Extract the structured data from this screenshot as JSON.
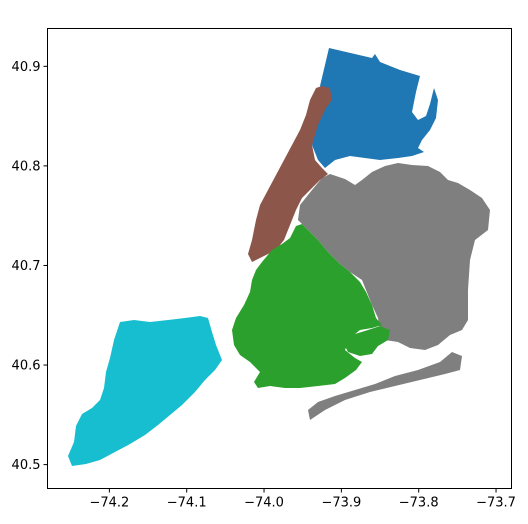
{
  "chart_data": {
    "type": "map",
    "xlim": [
      -74.28,
      -73.68
    ],
    "ylim": [
      40.476,
      40.938
    ],
    "x_ticks": [
      {
        "value": -74.2,
        "label": "−74.2"
      },
      {
        "value": -74.1,
        "label": "−74.1"
      },
      {
        "value": -74.0,
        "label": "−74.0"
      },
      {
        "value": -73.9,
        "label": "−73.9"
      },
      {
        "value": -73.8,
        "label": "−73.8"
      },
      {
        "value": -73.7,
        "label": "−73.7"
      }
    ],
    "y_ticks": [
      {
        "value": 40.5,
        "label": "40.5"
      },
      {
        "value": 40.6,
        "label": "40.6"
      },
      {
        "value": 40.7,
        "label": "40.7"
      },
      {
        "value": 40.8,
        "label": "40.8"
      },
      {
        "value": 40.9,
        "label": "40.9"
      }
    ],
    "grid": false,
    "regions": [
      {
        "id": "bronx",
        "color": "#1f77b4"
      },
      {
        "id": "manhattan",
        "color": "#8c564b"
      },
      {
        "id": "queens",
        "color": "#7f7f7f"
      },
      {
        "id": "brooklyn",
        "color": "#2ca02c"
      },
      {
        "id": "staten-island",
        "color": "#17becf"
      }
    ]
  }
}
